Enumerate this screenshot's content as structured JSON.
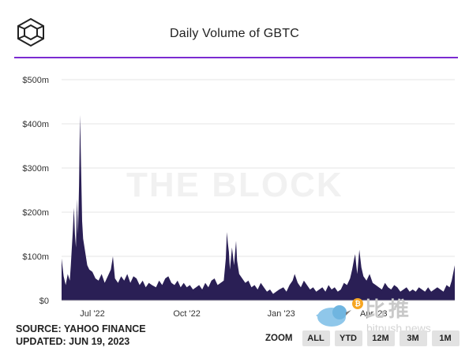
{
  "header": {
    "title": "Daily Volume of GBTC"
  },
  "watermark": {
    "text": "THE BLOCK",
    "zh": "比推",
    "url": "bitpush.news"
  },
  "source": {
    "line1": "SOURCE: YAHOO FINANCE",
    "line2": "UPDATED: JUN 19, 2023"
  },
  "zoom": {
    "label": "ZOOM",
    "buttons": [
      "ALL",
      "YTD",
      "12M",
      "3M",
      "1M"
    ]
  },
  "colors": {
    "area": "#2a1f55",
    "rule": "#7b2bd1",
    "grid": "#e6e6e6"
  },
  "icons": {
    "logo": "the-block-cube-icon",
    "watermark": "bird-coin-icon"
  },
  "chart_data": {
    "type": "area",
    "title": "Daily Volume of GBTC",
    "ylabel": "",
    "xlabel": "",
    "ylim": [
      0,
      500
    ],
    "y_unit": "$m",
    "y_ticks": [
      0,
      100,
      200,
      300,
      400,
      500
    ],
    "y_tick_labels": [
      "$0",
      "$100m",
      "$200m",
      "$300m",
      "$400m",
      "$500m"
    ],
    "x_range": [
      "2022-06-01",
      "2023-06-19"
    ],
    "x_ticks": [
      "2022-07-01",
      "2022-10-01",
      "2023-01-01",
      "2023-04-01"
    ],
    "x_tick_labels": [
      "Jul '22",
      "Oct '22",
      "Jan '23",
      "Apr '23"
    ],
    "grid": true,
    "series": [
      {
        "values": [
          [
            "2022-06-01",
            95
          ],
          [
            "2022-06-03",
            55
          ],
          [
            "2022-06-05",
            35
          ],
          [
            "2022-06-07",
            60
          ],
          [
            "2022-06-09",
            45
          ],
          [
            "2022-06-10",
            80
          ],
          [
            "2022-06-12",
            160
          ],
          [
            "2022-06-13",
            210
          ],
          [
            "2022-06-14",
            150
          ],
          [
            "2022-06-15",
            120
          ],
          [
            "2022-06-16",
            230
          ],
          [
            "2022-06-17",
            150
          ],
          [
            "2022-06-18",
            260
          ],
          [
            "2022-06-19",
            420
          ],
          [
            "2022-06-20",
            300
          ],
          [
            "2022-06-21",
            180
          ],
          [
            "2022-06-22",
            140
          ],
          [
            "2022-06-24",
            110
          ],
          [
            "2022-06-26",
            80
          ],
          [
            "2022-06-28",
            70
          ],
          [
            "2022-07-01",
            65
          ],
          [
            "2022-07-04",
            50
          ],
          [
            "2022-07-07",
            45
          ],
          [
            "2022-07-10",
            60
          ],
          [
            "2022-07-13",
            40
          ],
          [
            "2022-07-16",
            55
          ],
          [
            "2022-07-19",
            70
          ],
          [
            "2022-07-21",
            100
          ],
          [
            "2022-07-23",
            50
          ],
          [
            "2022-07-26",
            40
          ],
          [
            "2022-07-29",
            55
          ],
          [
            "2022-08-01",
            45
          ],
          [
            "2022-08-04",
            60
          ],
          [
            "2022-08-07",
            40
          ],
          [
            "2022-08-10",
            55
          ],
          [
            "2022-08-13",
            50
          ],
          [
            "2022-08-16",
            35
          ],
          [
            "2022-08-19",
            45
          ],
          [
            "2022-08-22",
            30
          ],
          [
            "2022-08-25",
            40
          ],
          [
            "2022-08-28",
            35
          ],
          [
            "2022-09-01",
            30
          ],
          [
            "2022-09-04",
            45
          ],
          [
            "2022-09-07",
            35
          ],
          [
            "2022-09-10",
            50
          ],
          [
            "2022-09-13",
            55
          ],
          [
            "2022-09-16",
            40
          ],
          [
            "2022-09-19",
            35
          ],
          [
            "2022-09-22",
            45
          ],
          [
            "2022-09-25",
            30
          ],
          [
            "2022-09-28",
            40
          ],
          [
            "2022-10-01",
            30
          ],
          [
            "2022-10-04",
            35
          ],
          [
            "2022-10-07",
            25
          ],
          [
            "2022-10-10",
            30
          ],
          [
            "2022-10-13",
            35
          ],
          [
            "2022-10-16",
            25
          ],
          [
            "2022-10-19",
            40
          ],
          [
            "2022-10-22",
            30
          ],
          [
            "2022-10-25",
            45
          ],
          [
            "2022-10-28",
            50
          ],
          [
            "2022-10-31",
            35
          ],
          [
            "2022-11-03",
            40
          ],
          [
            "2022-11-06",
            45
          ],
          [
            "2022-11-08",
            95
          ],
          [
            "2022-11-09",
            155
          ],
          [
            "2022-11-10",
            130
          ],
          [
            "2022-11-11",
            110
          ],
          [
            "2022-11-12",
            70
          ],
          [
            "2022-11-14",
            120
          ],
          [
            "2022-11-16",
            80
          ],
          [
            "2022-11-18",
            135
          ],
          [
            "2022-11-19",
            90
          ],
          [
            "2022-11-21",
            60
          ],
          [
            "2022-11-24",
            50
          ],
          [
            "2022-11-27",
            40
          ],
          [
            "2022-11-30",
            45
          ],
          [
            "2022-12-03",
            30
          ],
          [
            "2022-12-06",
            35
          ],
          [
            "2022-12-09",
            25
          ],
          [
            "2022-12-12",
            40
          ],
          [
            "2022-12-15",
            30
          ],
          [
            "2022-12-18",
            20
          ],
          [
            "2022-12-21",
            25
          ],
          [
            "2022-12-24",
            15
          ],
          [
            "2022-12-27",
            20
          ],
          [
            "2022-12-30",
            25
          ],
          [
            "2023-01-03",
            30
          ],
          [
            "2023-01-06",
            20
          ],
          [
            "2023-01-09",
            35
          ],
          [
            "2023-01-12",
            45
          ],
          [
            "2023-01-14",
            60
          ],
          [
            "2023-01-17",
            40
          ],
          [
            "2023-01-20",
            30
          ],
          [
            "2023-01-23",
            45
          ],
          [
            "2023-01-26",
            35
          ],
          [
            "2023-01-29",
            25
          ],
          [
            "2023-02-01",
            30
          ],
          [
            "2023-02-04",
            20
          ],
          [
            "2023-02-07",
            25
          ],
          [
            "2023-02-10",
            30
          ],
          [
            "2023-02-13",
            20
          ],
          [
            "2023-02-16",
            35
          ],
          [
            "2023-02-19",
            25
          ],
          [
            "2023-02-22",
            30
          ],
          [
            "2023-02-25",
            20
          ],
          [
            "2023-02-28",
            25
          ],
          [
            "2023-03-03",
            40
          ],
          [
            "2023-03-06",
            35
          ],
          [
            "2023-03-09",
            50
          ],
          [
            "2023-03-11",
            70
          ],
          [
            "2023-03-13",
            95
          ],
          [
            "2023-03-14",
            105
          ],
          [
            "2023-03-15",
            80
          ],
          [
            "2023-03-16",
            60
          ],
          [
            "2023-03-18",
            115
          ],
          [
            "2023-03-20",
            75
          ],
          [
            "2023-03-22",
            55
          ],
          [
            "2023-03-25",
            45
          ],
          [
            "2023-03-28",
            60
          ],
          [
            "2023-03-31",
            40
          ],
          [
            "2023-04-03",
            35
          ],
          [
            "2023-04-06",
            30
          ],
          [
            "2023-04-09",
            25
          ],
          [
            "2023-04-12",
            40
          ],
          [
            "2023-04-15",
            30
          ],
          [
            "2023-04-18",
            25
          ],
          [
            "2023-04-21",
            35
          ],
          [
            "2023-04-24",
            30
          ],
          [
            "2023-04-27",
            20
          ],
          [
            "2023-04-30",
            25
          ],
          [
            "2023-05-03",
            30
          ],
          [
            "2023-05-06",
            20
          ],
          [
            "2023-05-09",
            25
          ],
          [
            "2023-05-12",
            20
          ],
          [
            "2023-05-15",
            30
          ],
          [
            "2023-05-18",
            25
          ],
          [
            "2023-05-21",
            20
          ],
          [
            "2023-05-24",
            30
          ],
          [
            "2023-05-27",
            20
          ],
          [
            "2023-05-30",
            25
          ],
          [
            "2023-06-02",
            30
          ],
          [
            "2023-06-05",
            25
          ],
          [
            "2023-06-08",
            20
          ],
          [
            "2023-06-11",
            35
          ],
          [
            "2023-06-14",
            30
          ],
          [
            "2023-06-16",
            45
          ],
          [
            "2023-06-19",
            80
          ]
        ]
      }
    ]
  }
}
